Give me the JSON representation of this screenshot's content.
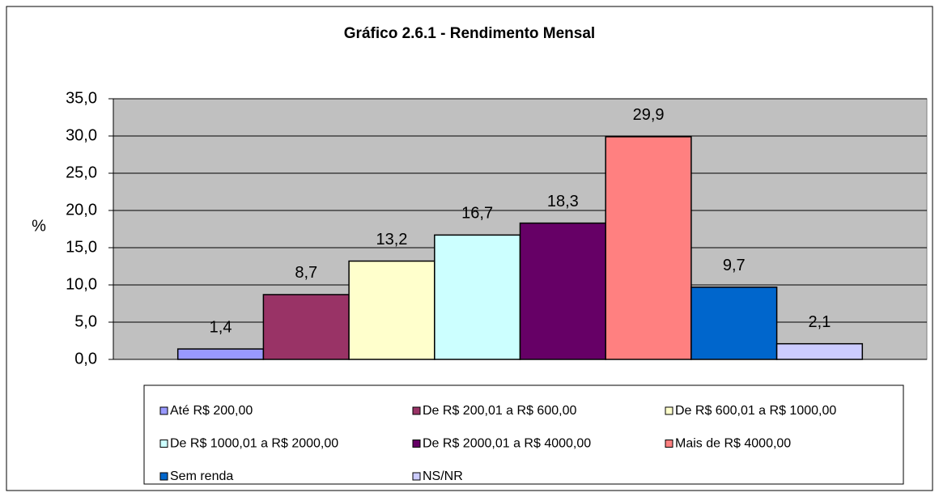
{
  "chart_data": {
    "type": "bar",
    "title": "Gráfico 2.6.1 - Rendimento Mensal",
    "y_label": "%",
    "ylim": [
      0,
      35
    ],
    "yticks": [
      {
        "value": 0,
        "label": "0,0"
      },
      {
        "value": 5,
        "label": "5,0"
      },
      {
        "value": 10,
        "label": "10,0"
      },
      {
        "value": 15,
        "label": "15,0"
      },
      {
        "value": 20,
        "label": "20,0"
      },
      {
        "value": 25,
        "label": "25,0"
      },
      {
        "value": 30,
        "label": "30,0"
      },
      {
        "value": 35,
        "label": "35,0"
      }
    ],
    "grid": true,
    "legend": "bottom",
    "series": [
      {
        "name": "Até R$ 200,00",
        "color": "#9999ff",
        "values": [
          1.4
        ],
        "value_labels": [
          "1,4"
        ]
      },
      {
        "name": "De R$ 200,01 a R$ 600,00",
        "color": "#993366",
        "values": [
          8.7
        ],
        "value_labels": [
          "8,7"
        ]
      },
      {
        "name": "De R$ 600,01 a R$ 1000,00",
        "color": "#ffffcc",
        "values": [
          13.2
        ],
        "value_labels": [
          "13,2"
        ]
      },
      {
        "name": "De R$ 1000,01 a R$ 2000,00",
        "color": "#ccffff",
        "values": [
          16.7
        ],
        "value_labels": [
          "16,7"
        ]
      },
      {
        "name": "De R$ 2000,01 a R$ 4000,00",
        "color": "#660066",
        "values": [
          18.3
        ],
        "value_labels": [
          "18,3"
        ]
      },
      {
        "name": "Mais de R$ 4000,00",
        "color": "#ff8080",
        "values": [
          29.9
        ],
        "value_labels": [
          "29,9"
        ]
      },
      {
        "name": "Sem renda",
        "color": "#0066cc",
        "values": [
          9.7
        ],
        "value_labels": [
          "9,7"
        ]
      },
      {
        "name": "NS/NR",
        "color": "#ccccff",
        "values": [
          2.1
        ],
        "value_labels": [
          "2,1"
        ]
      }
    ]
  }
}
